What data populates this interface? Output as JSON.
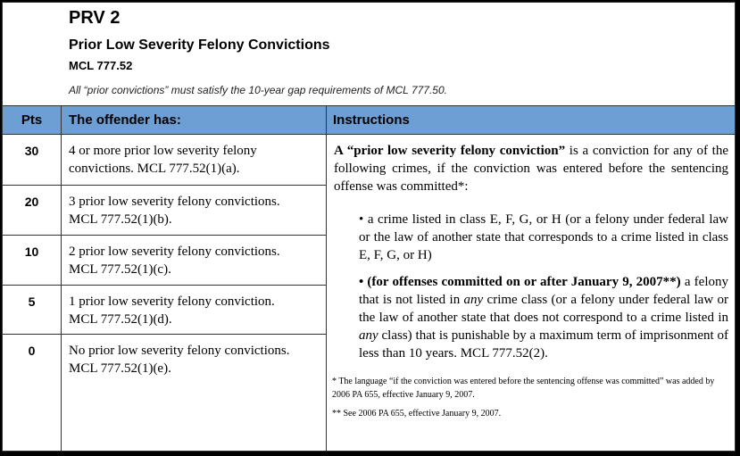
{
  "header": {
    "code": "PRV 2",
    "subtitle": "Prior Low Severity Felony Convictions",
    "statute": "MCL 777.52",
    "note": "All “prior convictions” must satisfy the 10-year gap requirements of MCL 777.50."
  },
  "table": {
    "headers": {
      "pts": "Pts",
      "offender": "The offender has:",
      "instructions": "Instructions"
    },
    "rows": [
      {
        "pts": "30",
        "line1": "4 or more prior low severity felony",
        "line2": "convictions. MCL 777.52(1)(a)."
      },
      {
        "pts": "20",
        "line1": "3 prior low severity felony convictions.",
        "line2": "MCL 777.52(1)(b)."
      },
      {
        "pts": "10",
        "line1": "2 prior low severity felony convictions.",
        "line2": "MCL 777.52(1)(c)."
      },
      {
        "pts": "5",
        "line1": "1 prior low severity felony conviction.",
        "line2": "MCL 777.52(1)(d)."
      },
      {
        "pts": "0",
        "line1": "No prior low severity felony convictions.",
        "line2": "MCL 777.52(1)(e)."
      }
    ]
  },
  "instructions": {
    "intro_bold": "A “prior low severity felony conviction”",
    "intro_rest": " is a conviction for any of the following crimes, if the conviction was entered before the sentencing offense was committed*:",
    "bullet1": "• a crime listed in class E, F, G, or H (or a felony under federal law or the law of another state that corresponds to a crime listed in class E, F, G, or H)",
    "bullet2_bold": "• (for offenses committed on or after January 9, 2007**)",
    "bullet2_a": " a felony that is not listed in ",
    "bullet2_any1": "any",
    "bullet2_b": " crime class (or a felony under federal law or the law of another state that does not correspond to a crime listed in ",
    "bullet2_any2": "any",
    "bullet2_c": " class) that is punishable by a maximum term of imprisonment of less than 10 years. MCL 777.52(2).",
    "footnote1": "* The language “if the conviction was entered before the sentencing offense was committed” was added by 2006 PA 655, effective January 9, 2007.",
    "footnote2": "** See 2006 PA 655, effective January 9, 2007."
  },
  "colors": {
    "header_fill": "#6d9ed4",
    "border": "#333333"
  }
}
